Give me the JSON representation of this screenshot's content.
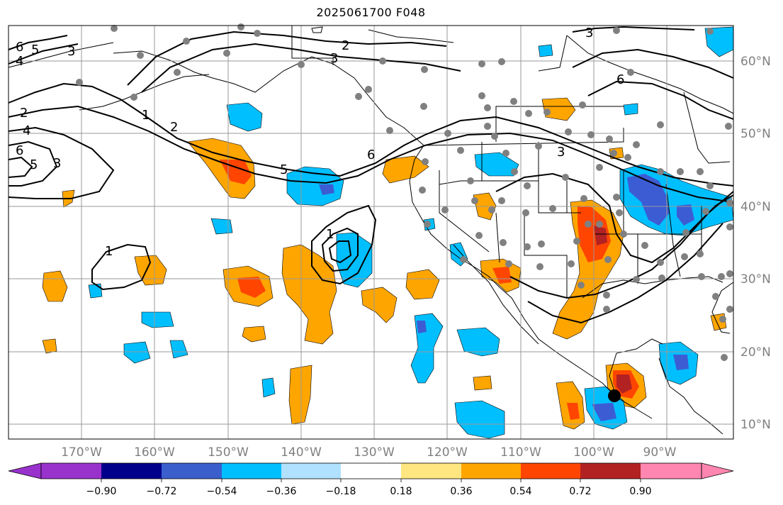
{
  "title": "2025061700 F048",
  "map": {
    "lon_labels": [
      "170°W",
      "160°W",
      "150°W",
      "140°W",
      "130°W",
      "120°W",
      "110°W",
      "100°W",
      "90°W"
    ],
    "lat_labels": [
      "60°N",
      "50°N",
      "40°N",
      "30°N",
      "20°N",
      "10°N"
    ],
    "contour_labels": [
      "6",
      "5",
      "4",
      "3",
      "2",
      "1",
      "2",
      "3",
      "4",
      "5",
      "6",
      "1",
      "2",
      "5",
      "6",
      "3",
      "6",
      "3",
      "3",
      "1"
    ],
    "colors": {
      "orange": "#ffa500",
      "red_orange": "#ff4500",
      "dark_red": "#b22222",
      "light_yellow": "#ffe680",
      "cyan": "#00bfff",
      "light_cyan": "#add8f5",
      "royal_blue": "#3c5cd4",
      "station_dot": "#808080"
    }
  },
  "colorbar": {
    "ticks": [
      "−0.90",
      "−0.72",
      "−0.54",
      "−0.36",
      "−0.18",
      "0.18",
      "0.36",
      "0.54",
      "0.72",
      "0.90"
    ],
    "colors": [
      "#9932cc",
      "#00008b",
      "#3a5fcd",
      "#00bfff",
      "#b0e2ff",
      "#ffffff",
      "#ffe680",
      "#ffa500",
      "#ff4500",
      "#b22222",
      "#ff86b0"
    ]
  }
}
